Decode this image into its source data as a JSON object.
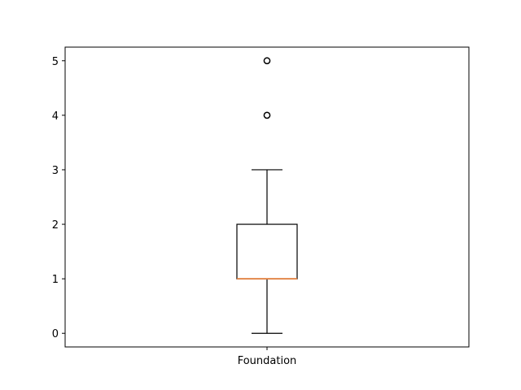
{
  "chart_data": {
    "type": "box",
    "title": "",
    "xlabel": "",
    "ylabel": "",
    "categories": [
      "Foundation"
    ],
    "ylim": [
      -0.25,
      5.25
    ],
    "y_ticks": [
      0,
      1,
      2,
      3,
      4,
      5
    ],
    "grid": false,
    "boxes": [
      {
        "category": "Foundation",
        "whisker_low": 0,
        "q1": 1,
        "median": 1,
        "q3": 2,
        "whisker_high": 3,
        "outliers": [
          4,
          5
        ]
      }
    ],
    "colors": {
      "box": "#000000",
      "median": "#e07b39",
      "outlier": "#000000"
    }
  }
}
